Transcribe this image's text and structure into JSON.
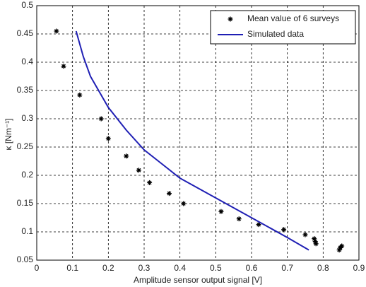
{
  "chart_data": {
    "type": "scatter",
    "x_label": "Amplitude sensor output signal [V]",
    "y_label": "κ  [Nm⁻¹]",
    "xlim": [
      0,
      0.9
    ],
    "xticks": [
      0,
      0.1,
      0.2,
      0.3,
      0.4,
      0.5,
      0.6,
      0.7,
      0.8,
      0.9
    ],
    "ylim": [
      0.05,
      0.5
    ],
    "yticks": [
      0.05,
      0.1,
      0.15,
      0.2,
      0.25,
      0.3,
      0.35,
      0.4,
      0.45,
      0.5
    ],
    "grid": true,
    "legend": "upper right",
    "series": [
      {
        "name": "Mean value of 6 surveys",
        "type": "scatter",
        "color": "#000000",
        "x": [
          0.055,
          0.075,
          0.12,
          0.18,
          0.2,
          0.25,
          0.285,
          0.315,
          0.37,
          0.41,
          0.515,
          0.565,
          0.62,
          0.69,
          0.75,
          0.775,
          0.778,
          0.78,
          0.845,
          0.848,
          0.852
        ],
        "values": [
          0.455,
          0.393,
          0.342,
          0.3,
          0.265,
          0.234,
          0.209,
          0.187,
          0.168,
          0.15,
          0.136,
          0.123,
          0.113,
          0.104,
          0.095,
          0.088,
          0.083,
          0.079,
          0.068,
          0.072,
          0.075
        ]
      },
      {
        "name": "Simulated data",
        "type": "line",
        "color": "#1f1fb4",
        "x": [
          0.11,
          0.13,
          0.15,
          0.2,
          0.25,
          0.3,
          0.35,
          0.4,
          0.5,
          0.6,
          0.7,
          0.76
        ],
        "values": [
          0.455,
          0.41,
          0.375,
          0.32,
          0.28,
          0.245,
          0.22,
          0.195,
          0.16,
          0.125,
          0.09,
          0.068
        ]
      }
    ]
  }
}
